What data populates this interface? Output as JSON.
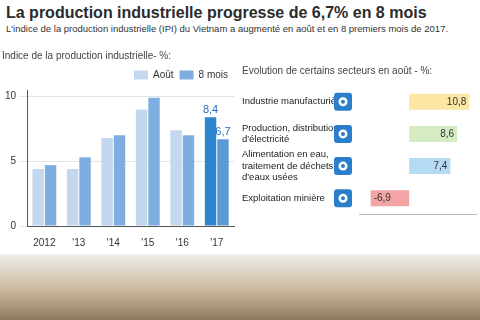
{
  "title": "La production industrielle progresse de 6,7% en 8 mois",
  "subtitle": "L'indice de la production industrielle (IPI) du Vietnam a augmenté en août et en 8 premiers mois de 2017.",
  "chart_data": [
    {
      "type": "bar",
      "title": "Indice de la production industrielle- %:",
      "categories": [
        "2012",
        "'13",
        "'14",
        "'15",
        "'16",
        "'17"
      ],
      "series": [
        {
          "name": "Août",
          "color": "#c3d7ee",
          "colors": [
            "#c3d7ee",
            "#c3d7ee",
            "#c3d7ee",
            "#c3d7ee",
            "#c3d7ee",
            "#2f84d2"
          ],
          "values": [
            4.4,
            4.4,
            6.8,
            9.0,
            7.4,
            8.4
          ],
          "value_labels": [
            null,
            null,
            null,
            null,
            null,
            "8,4"
          ]
        },
        {
          "name": "8 mois",
          "color": "#7eaee0",
          "colors": [
            "#7eaee0",
            "#7eaee0",
            "#7eaee0",
            "#7eaee0",
            "#7eaee0",
            "#5a9ad6"
          ],
          "values": [
            4.7,
            5.3,
            7.0,
            9.9,
            7.0,
            6.7
          ],
          "value_labels": [
            null,
            null,
            null,
            null,
            null,
            "6,7"
          ]
        }
      ],
      "ylim": [
        0,
        10.5
      ],
      "yticks": [
        0,
        5,
        10
      ],
      "grid": true,
      "legend": "upper right",
      "data_labels": true
    },
    {
      "type": "bar",
      "orientation": "horizontal",
      "title": "Evolution de certains secteurs en août - %:",
      "categories": [
        "Industrie manufacturière",
        "Production, distribution d'électricité",
        "Alimentation en eau, traitement de déchets et d'eaux usées",
        "Exploitation minière"
      ],
      "values": [
        10.8,
        8.6,
        7.4,
        -6.9
      ],
      "value_labels": [
        "10,8",
        "8,6",
        "7,4",
        "-6,9"
      ],
      "colors": [
        "#fbe6a2",
        "#d5ecc2",
        "#b5daf3",
        "#f3a4a4"
      ],
      "xlim": [
        -9,
        12
      ],
      "grid": false,
      "tick_labels": "y",
      "data_labels": true
    }
  ]
}
